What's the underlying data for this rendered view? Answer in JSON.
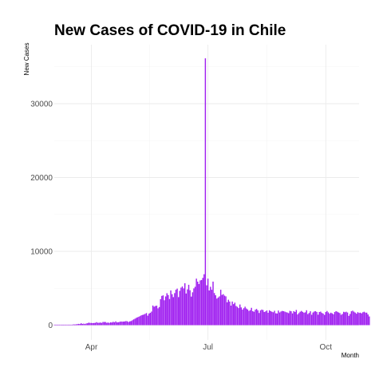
{
  "chart_data": {
    "type": "bar",
    "title": "New Cases of COVID-19 in Chile",
    "xlabel": "Month",
    "ylabel": "New Cases",
    "x_range": [
      "2020-03-03",
      "2020-10-27"
    ],
    "x_ticks": [
      {
        "date": "2020-04-01",
        "label": "Apr"
      },
      {
        "date": "2020-07-01",
        "label": "Jul"
      },
      {
        "date": "2020-10-01",
        "label": "Oct"
      }
    ],
    "ylim": [
      -2000,
      38000
    ],
    "y_ticks": [
      0,
      10000,
      20000,
      30000
    ],
    "y_tick_labels": [
      "0",
      "10000",
      "20000",
      "30000"
    ],
    "grid": true,
    "bar_color": "#a020f0",
    "series": [
      {
        "start_date": "2020-03-03",
        "values": [
          1,
          0,
          3,
          1,
          2,
          1,
          6,
          10,
          10,
          13,
          18,
          14,
          55,
          31,
          50,
          105,
          92,
          108,
          140,
          172,
          161,
          258,
          165,
          204,
          155,
          233,
          255,
          339,
          294,
          299,
          277,
          293,
          309,
          404,
          319,
          322,
          354,
          305,
          426,
          430,
          426,
          317,
          357,
          298,
          382,
          358,
          451,
          394,
          515,
          376,
          395,
          439,
          494,
          475,
          482,
          504,
          553,
          525,
          423,
          513,
          558,
          661,
          779,
          876,
          980,
          1066,
          1140,
          1227,
          1337,
          1385,
          1446,
          1535,
          1638,
          1289,
          1563,
          1672,
          1839,
          2660,
          2502,
          2595,
          2639,
          2278,
          2452,
          3520,
          3964,
          4038,
          3373,
          3893,
          4327,
          4085,
          3540,
          4697,
          4200,
          3797,
          4342,
          4800,
          4950,
          3800,
          4650,
          5080,
          5240,
          4980,
          5680,
          4290,
          4850,
          5470,
          4730,
          3870,
          4450,
          4980,
          5200,
          6300,
          5900,
          5570,
          6060,
          6120,
          6410,
          6900,
          36150,
          5400,
          6300,
          4700,
          5200,
          4800,
          5900,
          4350,
          4050,
          3600,
          3750,
          3900,
          4800,
          4100,
          4200,
          4000,
          3900,
          3100,
          3450,
          3200,
          2650,
          3200,
          2850,
          3050,
          2600,
          2480,
          2310,
          2800,
          2400,
          2100,
          2300,
          2500,
          2260,
          2130,
          1930,
          2030,
          2350,
          1900,
          1820,
          2090,
          2200,
          2010,
          1650,
          1990,
          2110,
          2050,
          1780,
          1860,
          1990,
          1680,
          2020,
          1900,
          1820,
          1750,
          1950,
          1610,
          1580,
          1980,
          1720,
          1850,
          1930,
          1890,
          1840,
          1760,
          1710,
          1630,
          1940,
          1880,
          1590,
          1900,
          1790,
          2060,
          1450,
          1630,
          1820,
          1930,
          1800,
          1690,
          1740,
          2020,
          1500,
          1650,
          1880,
          1410,
          1720,
          1850,
          1900,
          1790,
          1420,
          1780,
          1830,
          1660,
          1570,
          1390,
          1780,
          1920,
          1730,
          1550,
          1690,
          1600,
          1480,
          1780,
          1900,
          1820,
          1720,
          1640,
          1400,
          1520,
          1810,
          1750,
          1820,
          1710,
          1260,
          1520,
          1880,
          1960,
          1830,
          1700,
          1550,
          1760,
          1660,
          1690,
          1600,
          1750,
          1820,
          1700,
          1690,
          1450,
          1180
        ]
      }
    ]
  }
}
